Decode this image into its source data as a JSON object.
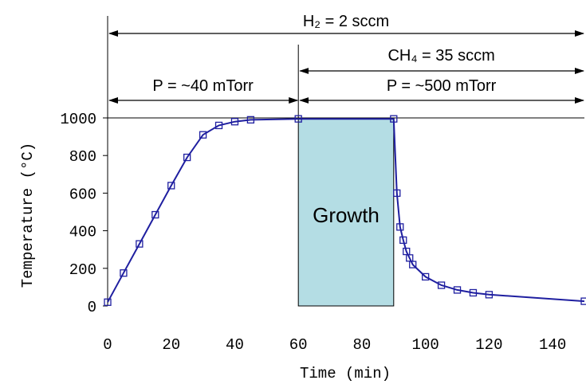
{
  "chart_data": {
    "type": "line",
    "xlabel": "Time (min)",
    "ylabel": "Temperature (°C)",
    "xlim": [
      0,
      150
    ],
    "ylim": [
      0,
      1000
    ],
    "xticks": [
      0,
      20,
      40,
      60,
      80,
      100,
      120,
      140
    ],
    "yticks": [
      0,
      200,
      400,
      600,
      800,
      1000
    ],
    "grid": false,
    "line_color": "#1f1fa0",
    "region_color": "#b4dde4",
    "series": [
      {
        "x": [
          0,
          5,
          10,
          15,
          20,
          25,
          30,
          35,
          40,
          45,
          60,
          90,
          91,
          92,
          93,
          94,
          95,
          96,
          100,
          105,
          110,
          115,
          120,
          150
        ],
        "y": [
          20,
          175,
          330,
          485,
          640,
          790,
          910,
          960,
          980,
          990,
          995,
          995,
          600,
          420,
          350,
          290,
          255,
          220,
          155,
          110,
          85,
          70,
          60,
          25
        ]
      }
    ],
    "shaded_region": {
      "x": [
        60,
        90
      ],
      "label": "Growth"
    },
    "annotations": {
      "h2": {
        "text": "H₂ = 2 sccm",
        "x": [
          0,
          150
        ]
      },
      "ch4": {
        "text": "CH₄ = 35 sccm",
        "x": [
          60,
          150
        ]
      },
      "p_low": {
        "text": "P = ~40 mTorr",
        "x": [
          0,
          60
        ]
      },
      "p_high": {
        "text": "P = ~500 mTorr",
        "x": [
          60,
          150
        ]
      }
    }
  }
}
